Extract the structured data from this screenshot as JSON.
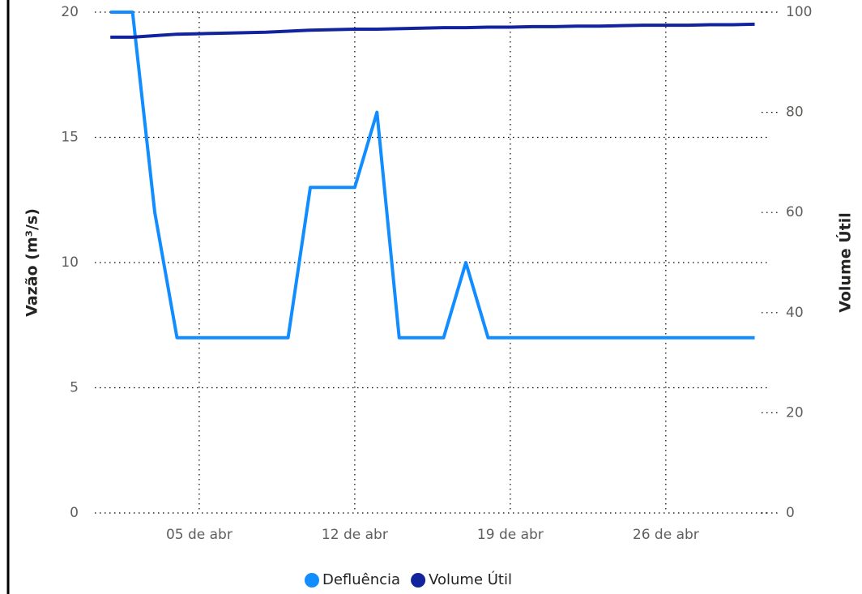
{
  "chart_data": {
    "type": "line",
    "y_label": "Vazão (m³/s)",
    "y2_label": "Volume Útil",
    "x": [
      1,
      2,
      3,
      4,
      5,
      6,
      7,
      8,
      9,
      10,
      11,
      12,
      13,
      14,
      15,
      16,
      17,
      18,
      19,
      20,
      21,
      22,
      23,
      24,
      25,
      26,
      27,
      28,
      29,
      30
    ],
    "xlim": [
      0.3,
      30.6
    ],
    "xticks": [
      {
        "value": 5,
        "label": "05 de abr"
      },
      {
        "value": 12,
        "label": "12 de abr"
      },
      {
        "value": 19,
        "label": "19 de abr"
      },
      {
        "value": 26,
        "label": "26 de abr"
      }
    ],
    "ylim": [
      0,
      20
    ],
    "yticks": [
      0,
      5,
      10,
      15,
      20
    ],
    "y2lim": [
      0,
      100
    ],
    "y2ticks": [
      0,
      20,
      40,
      60,
      80,
      100
    ],
    "grid": true,
    "legend": "bottom",
    "series": [
      {
        "name": "Defluência",
        "color": "#118DFF",
        "values": [
          20,
          20,
          12,
          7,
          7,
          7,
          7,
          7,
          7,
          13,
          13,
          13,
          16,
          7,
          7,
          7,
          10,
          7,
          7,
          7,
          7,
          7,
          7,
          7,
          7,
          7,
          7,
          7,
          7,
          7
        ]
      },
      {
        "name": "Volume Útil",
        "color": "#12239E",
        "axis": "y2",
        "values": [
          95,
          95,
          95.3,
          95.6,
          95.7,
          95.8,
          95.9,
          96.0,
          96.2,
          96.4,
          96.5,
          96.6,
          96.6,
          96.7,
          96.8,
          96.9,
          96.9,
          97.0,
          97.0,
          97.1,
          97.1,
          97.2,
          97.2,
          97.3,
          97.4,
          97.4,
          97.4,
          97.5,
          97.5,
          97.6
        ]
      }
    ]
  }
}
